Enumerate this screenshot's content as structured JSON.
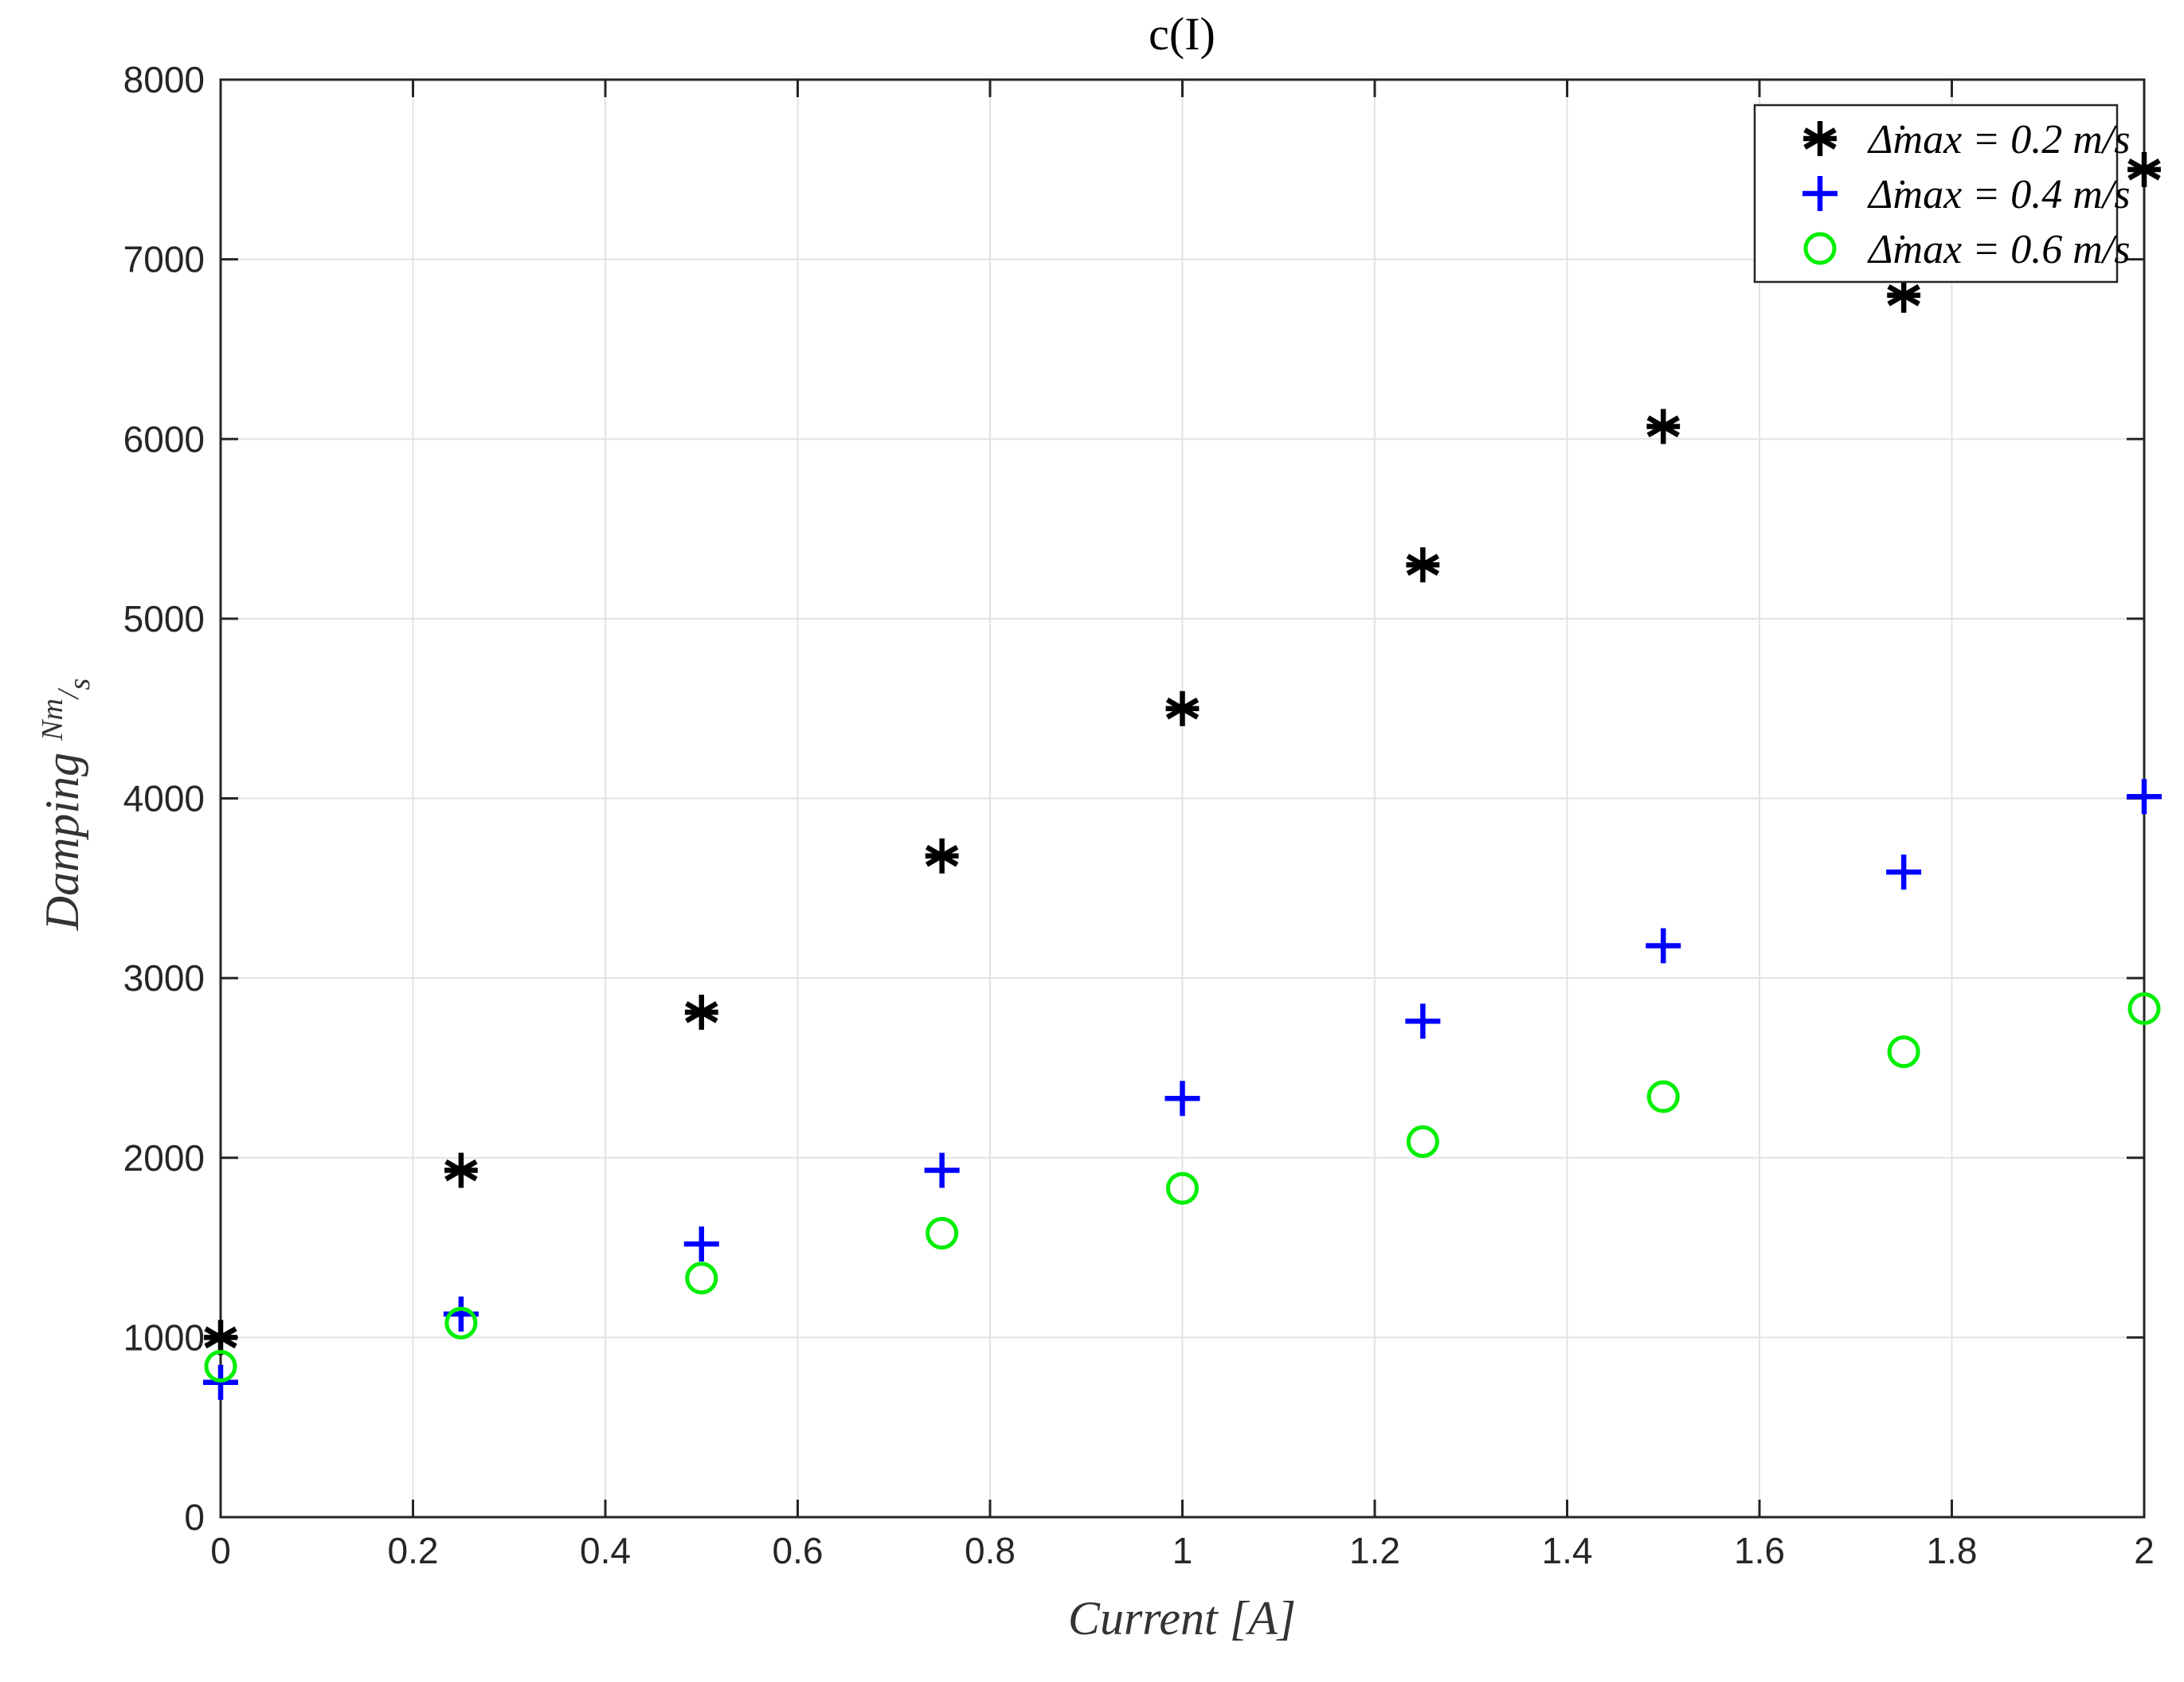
{
  "chart_data": {
    "type": "scatter",
    "title": "c(I)",
    "xlabel": "Current [A]",
    "ylabel": "Damping Nm/s",
    "xlim": [
      0,
      2
    ],
    "ylim": [
      0,
      8000
    ],
    "x_ticks": [
      "0",
      "0.2",
      "0.4",
      "0.6",
      "0.8",
      "1",
      "1.2",
      "1.4",
      "1.6",
      "1.8",
      "2"
    ],
    "y_ticks": [
      "0",
      "1000",
      "2000",
      "3000",
      "4000",
      "5000",
      "6000",
      "7000",
      "8000"
    ],
    "grid": true,
    "legend_position": "top-right",
    "x": [
      0,
      0.25,
      0.5,
      0.75,
      1,
      1.25,
      1.5,
      1.75,
      2
    ],
    "series": [
      {
        "name": "Δ̇max = 0.2 m/s",
        "marker": "asterisk",
        "color": "#000000",
        "values": [
          1000,
          1930,
          2810,
          3680,
          4500,
          5300,
          6070,
          6800,
          7500
        ]
      },
      {
        "name": "Δ̇max = 0.4 m/s",
        "marker": "plus",
        "color": "#0000ff",
        "values": [
          750,
          1130,
          1520,
          1930,
          2330,
          2760,
          3180,
          3590,
          4010
        ]
      },
      {
        "name": "Δ̇max = 0.6 m/s",
        "marker": "circle",
        "color": "#00ee00",
        "values": [
          840,
          1080,
          1330,
          1580,
          1830,
          2090,
          2340,
          2590,
          2830
        ]
      }
    ]
  }
}
